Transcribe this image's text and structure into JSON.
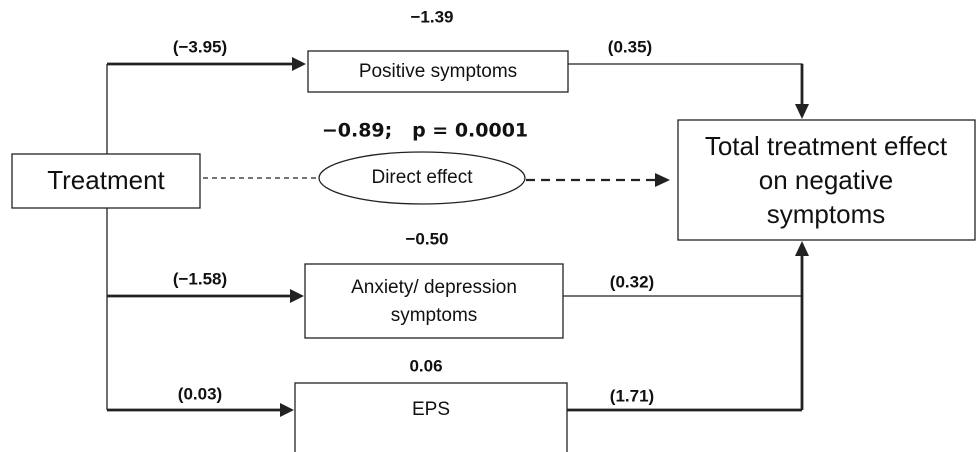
{
  "nodes": [
    {
      "label": [
        "Treatment"
      ]
    },
    {
      "label": [
        "Positive symptoms"
      ]
    },
    {
      "label": [
        "Direct effect"
      ]
    },
    {
      "label": [
        "Anxiety/ depression",
        "symptoms"
      ]
    },
    {
      "label": [
        "EPS"
      ]
    },
    {
      "label": [
        "Total treatment effect",
        "on negative",
        "symptoms"
      ]
    }
  ],
  "effects": {
    "positive": "−1.39",
    "direct": "−0.89;   p = 0.0001",
    "anxiety": "−0.50",
    "eps": "0.06"
  },
  "edges": {
    "treatment_positive": "(−3.95)",
    "positive_total": "(0.35)",
    "treatment_anxiety": "(−1.58)",
    "anxiety_total": "(0.32)",
    "treatment_eps": "(0.03)",
    "eps_total": "(1.71)"
  }
}
